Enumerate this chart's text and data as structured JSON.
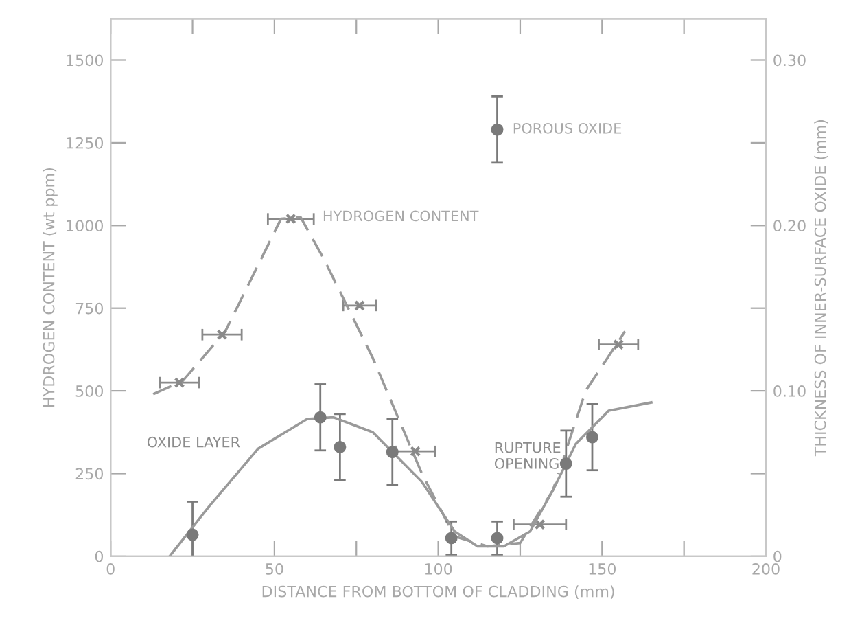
{
  "chart_data": {
    "type": "line",
    "xlabel": "DISTANCE FROM BOTTOM OF CLADDING (mm)",
    "ylabel": "HYDROGEN CONTENT (wt ppm)",
    "y2label": "THICKNESS OF INNER-SURFACE OXIDE (mm)",
    "xlim": [
      0,
      200
    ],
    "ylim": [
      0,
      1625
    ],
    "y2lim": [
      0,
      0.325
    ],
    "xticks": [
      0,
      {
        "value": 25,
        "label": null
      },
      50,
      {
        "value": 75,
        "label": null
      },
      100,
      {
        "value": 125,
        "label": null
      },
      150,
      {
        "value": 175,
        "label": null
      },
      200
    ],
    "yticks": [
      0,
      250,
      500,
      750,
      1000,
      1250,
      1500
    ],
    "y2ticks": [
      0,
      {
        "value": 0.05,
        "label": null
      },
      {
        "value": 0.1,
        "label": "0.10"
      },
      {
        "value": 0.15,
        "label": null
      },
      {
        "value": 0.2,
        "label": "0.20"
      },
      {
        "value": 0.25,
        "label": null
      },
      {
        "value": 0.3,
        "label": "0.30"
      }
    ],
    "grid": false,
    "legend": false,
    "series": [
      {
        "type": "scatter",
        "marker": "cross",
        "color": "#8a8a8a",
        "x": [
          21,
          34,
          55,
          76,
          93,
          131,
          155
        ],
        "values": [
          525,
          670,
          1020,
          758,
          317,
          96,
          640
        ],
        "xerrors": [
          6,
          6,
          7,
          5,
          6,
          8,
          6
        ]
      },
      {
        "line_style": "dashed",
        "marker": "none",
        "color": "#9a9a9a",
        "x": [
          13,
          22,
          35,
          45,
          52,
          58,
          65,
          80,
          95,
          105,
          115,
          125,
          135,
          145,
          157
        ],
        "values": [
          490,
          530,
          680,
          880,
          1020,
          1025,
          900,
          600,
          250,
          60,
          30,
          40,
          200,
          500,
          680
        ]
      },
      {
        "type": "scatter",
        "axis": "y2",
        "marker": "circle",
        "color": "#7a7a7a",
        "x": [
          25,
          64,
          70,
          86,
          104,
          118,
          139,
          147
        ],
        "values": [
          0.013,
          0.084,
          0.066,
          0.063,
          0.011,
          0.011,
          0.056,
          0.072
        ],
        "errors": [
          0.02,
          0.02,
          0.02,
          0.02,
          0.01,
          0.01,
          0.02,
          0.02
        ]
      },
      {
        "type": "scatter",
        "axis": "y2",
        "marker": "circle",
        "color": "#7a7a7a",
        "x": [
          118
        ],
        "values": [
          0.258
        ],
        "errors": [
          0.02
        ]
      },
      {
        "axis": "y2",
        "line_style": "solid",
        "marker": "none",
        "color": "#9a9a9a",
        "x": [
          18,
          30,
          45,
          60,
          68,
          80,
          95,
          105,
          112,
          120,
          128,
          135,
          142,
          152,
          165
        ],
        "values": [
          0,
          0.03,
          0.065,
          0.083,
          0.084,
          0.075,
          0.045,
          0.015,
          0.006,
          0.006,
          0.015,
          0.04,
          0.068,
          0.088,
          0.093
        ]
      }
    ],
    "annotations": [
      {
        "text": "HYDROGEN CONTENT",
        "x": 60,
        "y": 1025
      },
      "OXIDE LAYER",
      {
        "text": "POROUS OXIDE",
        "x": 118,
        "y": 1290
      },
      "RUPTURE\nOPENING"
    ]
  }
}
